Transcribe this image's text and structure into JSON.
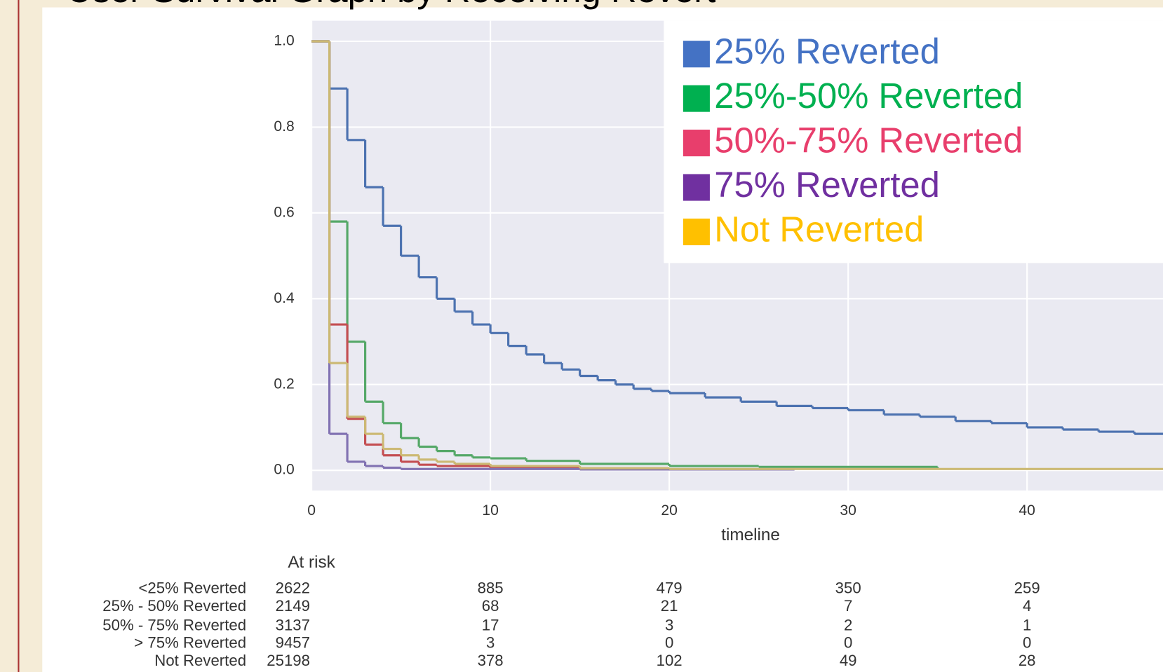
{
  "chart_data": {
    "type": "step",
    "title": "User Survival Graph by Receiving Revert",
    "xlabel": "timeline",
    "xlim": [
      0,
      47.6
    ],
    "ylim": [
      -0.047,
      1.048
    ],
    "xticks": [
      0,
      10,
      20,
      30,
      40
    ],
    "yticks": [
      {
        "value": 0,
        "label": "0.0"
      },
      {
        "value": 0.2,
        "label": "0.2"
      },
      {
        "value": 0.4,
        "label": "0.4"
      },
      {
        "value": 0.6,
        "label": "0.6"
      },
      {
        "value": 0.8,
        "label": "0.8"
      },
      {
        "value": 1,
        "label": "1.0"
      }
    ],
    "grid": true,
    "legend": "upper right",
    "series": [
      {
        "name": "25% Reverted",
        "color": "#4c72b0",
        "legend_color": "#4472c4",
        "x": [
          0,
          1,
          2,
          3,
          4,
          5,
          6,
          7,
          8,
          9,
          10,
          11,
          12,
          13,
          14,
          15,
          16,
          17,
          18,
          19,
          20,
          22,
          24,
          26,
          28,
          30,
          32,
          34,
          36,
          38,
          40,
          42,
          44,
          46,
          47.6
        ],
        "values": [
          1.0,
          0.89,
          0.77,
          0.66,
          0.57,
          0.5,
          0.45,
          0.4,
          0.37,
          0.34,
          0.32,
          0.29,
          0.27,
          0.25,
          0.235,
          0.22,
          0.21,
          0.2,
          0.19,
          0.185,
          0.18,
          0.17,
          0.16,
          0.15,
          0.145,
          0.14,
          0.13,
          0.125,
          0.115,
          0.11,
          0.1,
          0.095,
          0.09,
          0.085,
          0.085
        ]
      },
      {
        "name": "25%-50% Reverted",
        "color": "#55a868",
        "legend_color": "#00b050",
        "x": [
          0,
          1,
          2,
          3,
          4,
          5,
          6,
          7,
          8,
          9,
          10,
          12,
          15,
          20,
          25,
          35
        ],
        "values": [
          1.0,
          0.58,
          0.3,
          0.16,
          0.11,
          0.075,
          0.055,
          0.045,
          0.035,
          0.03,
          0.028,
          0.022,
          0.015,
          0.01,
          0.008,
          0.005
        ]
      },
      {
        "name": "50%-75% Reverted",
        "color": "#c44e52",
        "legend_color": "#e83e6c",
        "x": [
          0,
          1,
          2,
          3,
          4,
          5,
          6,
          7,
          10,
          20
        ],
        "values": [
          1.0,
          0.34,
          0.12,
          0.06,
          0.035,
          0.02,
          0.013,
          0.01,
          0.005,
          0.003
        ]
      },
      {
        "name": "75% Reverted",
        "color": "#8172b2",
        "legend_color": "#7030a0",
        "x": [
          0,
          1,
          2,
          3,
          4,
          5,
          15,
          27
        ],
        "values": [
          1.0,
          0.085,
          0.02,
          0.01,
          0.006,
          0.003,
          0.002,
          0.002
        ]
      },
      {
        "name": "Not Reverted",
        "color": "#ccb974",
        "legend_color": "#ffc000",
        "x": [
          0,
          1,
          2,
          3,
          4,
          5,
          6,
          7,
          8,
          10,
          15,
          20,
          47.6
        ],
        "values": [
          1.0,
          0.25,
          0.125,
          0.085,
          0.05,
          0.035,
          0.025,
          0.02,
          0.015,
          0.01,
          0.005,
          0.003,
          0.002
        ]
      }
    ],
    "at_risk": {
      "title": "At risk",
      "rows": [
        {
          "label": "<25% Reverted",
          "counts": [
            2622,
            885,
            479,
            350,
            259
          ]
        },
        {
          "label": "25% - 50% Reverted",
          "counts": [
            2149,
            68,
            21,
            7,
            4
          ]
        },
        {
          "label": "50% - 75% Reverted",
          "counts": [
            3137,
            17,
            3,
            2,
            1
          ]
        },
        {
          "label": "> 75% Reverted",
          "counts": [
            9457,
            3,
            0,
            0,
            0
          ]
        },
        {
          "label": "Not Reverted",
          "counts": [
            25198,
            378,
            102,
            49,
            28
          ]
        }
      ]
    }
  }
}
